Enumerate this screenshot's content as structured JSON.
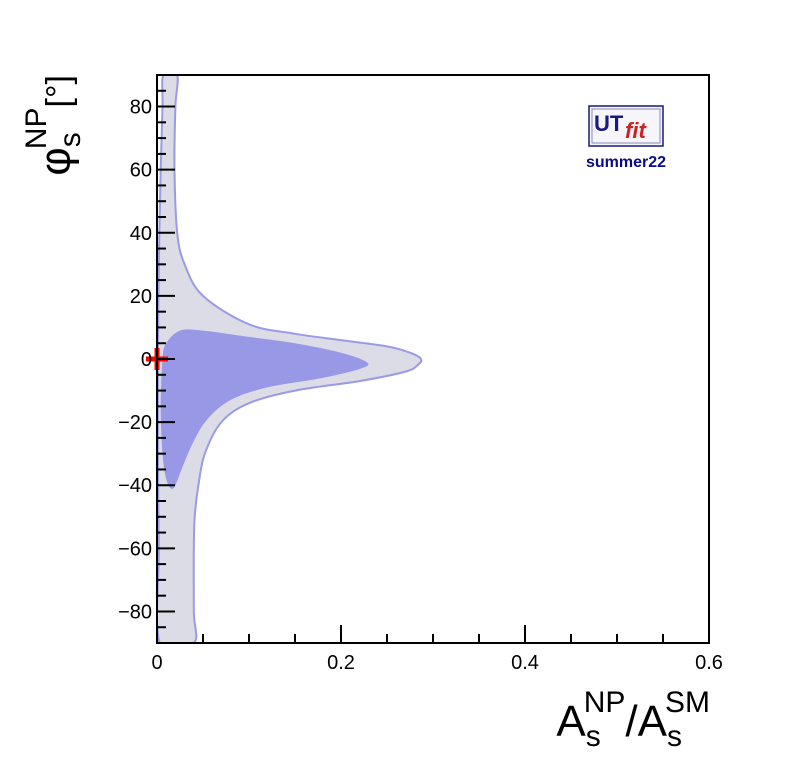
{
  "chart_data": {
    "type": "contour",
    "xlabel": {
      "base": "A",
      "sub": "s",
      "sup": "NP",
      "sep": "/",
      "base2": "A",
      "sub2": "s",
      "sup2": "SM"
    },
    "ylabel": {
      "base": "φ",
      "sub": "s",
      "sup": "NP",
      "unit": "[°]"
    },
    "xlim": [
      0,
      0.6
    ],
    "ylim": [
      -90,
      90
    ],
    "xticks": [
      0,
      0.2,
      0.4,
      0.6
    ],
    "xtick_labels": [
      "0",
      "0.2",
      "0.4",
      "0.6"
    ],
    "yticks": [
      -80,
      -60,
      -40,
      -20,
      0,
      20,
      40,
      60,
      80
    ],
    "ytick_labels": [
      "−80",
      "−60",
      "−40",
      "−20",
      "0",
      "20",
      "40",
      "60",
      "80"
    ],
    "regions": [
      {
        "level": "outer",
        "color": "#dcdce6",
        "stroke": "#9a9ae6",
        "boundary": [
          [
            0.007,
            90
          ],
          [
            0.022,
            90
          ],
          [
            0.02,
            80
          ],
          [
            0.019,
            60
          ],
          [
            0.022,
            40
          ],
          [
            0.03,
            30
          ],
          [
            0.05,
            20
          ],
          [
            0.1,
            11
          ],
          [
            0.15,
            8
          ],
          [
            0.2,
            6
          ],
          [
            0.25,
            4
          ],
          [
            0.275,
            2
          ],
          [
            0.287,
            0
          ],
          [
            0.283,
            -2
          ],
          [
            0.27,
            -4
          ],
          [
            0.22,
            -7
          ],
          [
            0.15,
            -10
          ],
          [
            0.1,
            -14
          ],
          [
            0.07,
            -20
          ],
          [
            0.052,
            -30
          ],
          [
            0.045,
            -40
          ],
          [
            0.041,
            -50
          ],
          [
            0.04,
            -60
          ],
          [
            0.04,
            -80
          ],
          [
            0.04,
            -90
          ],
          [
            0.003,
            -90
          ],
          [
            0.002,
            -60
          ],
          [
            0.001,
            -30
          ],
          [
            0.001,
            0
          ],
          [
            0.002,
            30
          ],
          [
            0.004,
            60
          ],
          [
            0.006,
            80
          ]
        ]
      },
      {
        "level": "inner",
        "color": "#9898e6",
        "boundary": [
          [
            0.01,
            5
          ],
          [
            0.025,
            9
          ],
          [
            0.05,
            9
          ],
          [
            0.1,
            7
          ],
          [
            0.15,
            5
          ],
          [
            0.2,
            2
          ],
          [
            0.228,
            -1
          ],
          [
            0.222,
            -3
          ],
          [
            0.18,
            -6
          ],
          [
            0.12,
            -9
          ],
          [
            0.08,
            -13
          ],
          [
            0.055,
            -19
          ],
          [
            0.04,
            -26
          ],
          [
            0.028,
            -34
          ],
          [
            0.02,
            -40
          ],
          [
            0.015,
            -41
          ],
          [
            0.01,
            -38
          ],
          [
            0.006,
            -30
          ],
          [
            0.004,
            -15
          ],
          [
            0.006,
            0
          ]
        ]
      }
    ],
    "markers": [
      {
        "x": 0.0,
        "y": 0,
        "symbol": "cross",
        "color": "#ff0000"
      }
    ]
  },
  "logo": {
    "ut": "UT",
    "fit": "fit",
    "caption": "summer22",
    "ut_color": "#1a1a7a",
    "fit_color": "#cc2222",
    "caption_color": "#0b0b8a"
  }
}
